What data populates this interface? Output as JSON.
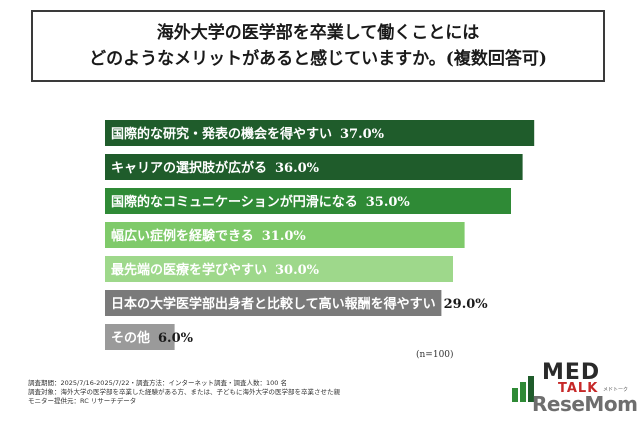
{
  "title": {
    "line1": "海外大学の医学部を卒業して働くことには",
    "line2": "どのようなメリットがあると感じていますか。(複数回答可)"
  },
  "chart_data": {
    "type": "bar",
    "orientation": "horizontal",
    "categories": [
      "国際的な研究・発表の機会を得やすい",
      "キャリアの選択肢が広がる",
      "国際的なコミュニケーションが円滑になる",
      "幅広い症例を経験できる",
      "最先端の医療を学びやすい",
      "日本の大学医学部出身者と比較して高い報酬を得やすい",
      "その他"
    ],
    "values": [
      37.0,
      36.0,
      35.0,
      31.0,
      30.0,
      29.0,
      6.0
    ],
    "value_labels": [
      "37.0%",
      "36.0%",
      "35.0%",
      "31.0%",
      "30.0%",
      "29.0%",
      "6.0%"
    ],
    "colors": [
      "#1f5c2b",
      "#1f5c2b",
      "#2f8a36",
      "#7fca6a",
      "#9ed88b",
      "#7a7a7a",
      "#9a9a9a"
    ],
    "label_colors": [
      "#ffffff",
      "#ffffff",
      "#ffffff",
      "#ffffff",
      "#ffffff",
      "#ffffff",
      "#ffffff"
    ],
    "value_label_colors": [
      "#ffffff",
      "#ffffff",
      "#ffffff",
      "#ffffff",
      "#ffffff",
      "#1a1a1a",
      "#1a1a1a"
    ],
    "xlim": [
      0,
      40
    ]
  },
  "note": "(n=100)",
  "footer": {
    "line1": "調査期間：2025/7/16-2025/7/22・調査方法：インターネット調査・調査人数：100 名",
    "line2": "調査対象：海外大学の医学部を卒業した経験がある方、または、子どもに海外大学の医学部を卒業させた親",
    "line3": "モニター提供元：RC リサーチデータ"
  },
  "logo": {
    "med": "MED",
    "talk": "TALK",
    "sub": "メドトーク",
    "rese": "ReseMom"
  }
}
